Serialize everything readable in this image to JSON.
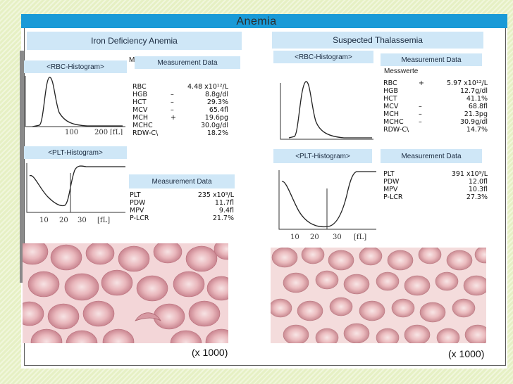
{
  "slide": {
    "title": "Anemia",
    "left_heading": "Iron Deficiency Anemia",
    "right_heading": "Suspected Thalassemia",
    "magnification": "(x 1000)",
    "accent_color": "#1a9ad7",
    "box_color": "#cfe7f7"
  },
  "left": {
    "rbc_histogram_label": "<RBC-Histogram>",
    "plt_histogram_label": "<PLT-Histogram>",
    "rbc_axis_ticks": [
      "100",
      "200",
      "[fL]"
    ],
    "plt_axis_ticks": [
      "10",
      "20",
      "30",
      "[fL]"
    ],
    "fragment_letter": "M",
    "rbc_measurement_title": "Measurement Data",
    "rbc_rows": [
      {
        "name": "RBC",
        "flag": "",
        "value": "4.48 x10¹²/L"
      },
      {
        "name": "HGB",
        "flag": "–",
        "value": "8.8g/dl"
      },
      {
        "name": "HCT",
        "flag": "–",
        "value": "29.3%"
      },
      {
        "name": "MCV",
        "flag": "–",
        "value": "65.4fl"
      },
      {
        "name": "MCH",
        "flag": "+",
        "value": "19.6pg"
      },
      {
        "name": "MCHC",
        "flag": "",
        "value": "30.0g/dl"
      },
      {
        "name": "RDW-C\\",
        "flag": "",
        "value": "18.2%"
      }
    ],
    "plt_measurement_title": "Measurement Data",
    "plt_rows": [
      {
        "name": "PLT",
        "value": "235 x10⁹/L"
      },
      {
        "name": "PDW",
        "value": "11.7fl"
      },
      {
        "name": "MPV",
        "value": "9.4fl"
      },
      {
        "name": "P-LCR",
        "value": "21.7%"
      }
    ]
  },
  "right": {
    "rbc_histogram_label": "<RBC-Histogram>",
    "plt_histogram_label": "<PLT-Histogram>",
    "plt_axis_ticks": [
      "10",
      "20",
      "30",
      "[fL]"
    ],
    "rbc_measurement_title": "Measurement Data",
    "rbc_subtitle": "Messwerte",
    "rbc_rows": [
      {
        "name": "RBC",
        "flag": "+",
        "value": "5.97 x10¹²/L"
      },
      {
        "name": "HGB",
        "flag": "",
        "value": "12.7g/dl"
      },
      {
        "name": "HCT",
        "flag": "",
        "value": "41.1%"
      },
      {
        "name": "MCV",
        "flag": "–",
        "value": "68.8fl"
      },
      {
        "name": "MCH",
        "flag": "–",
        "value": "21.3pg"
      },
      {
        "name": "MCHC",
        "flag": "–",
        "value": "30.9g/dl"
      },
      {
        "name": "RDW-C\\",
        "flag": "",
        "value": "14.7%"
      }
    ],
    "plt_measurement_title": "Measurement Data",
    "plt_rows": [
      {
        "name": "PLT",
        "value": "391 x10⁹/L"
      },
      {
        "name": "PDW",
        "value": "12.0fl"
      },
      {
        "name": "MPV",
        "value": "10.3fl"
      },
      {
        "name": "P-LCR",
        "value": "27.3%"
      }
    ]
  }
}
